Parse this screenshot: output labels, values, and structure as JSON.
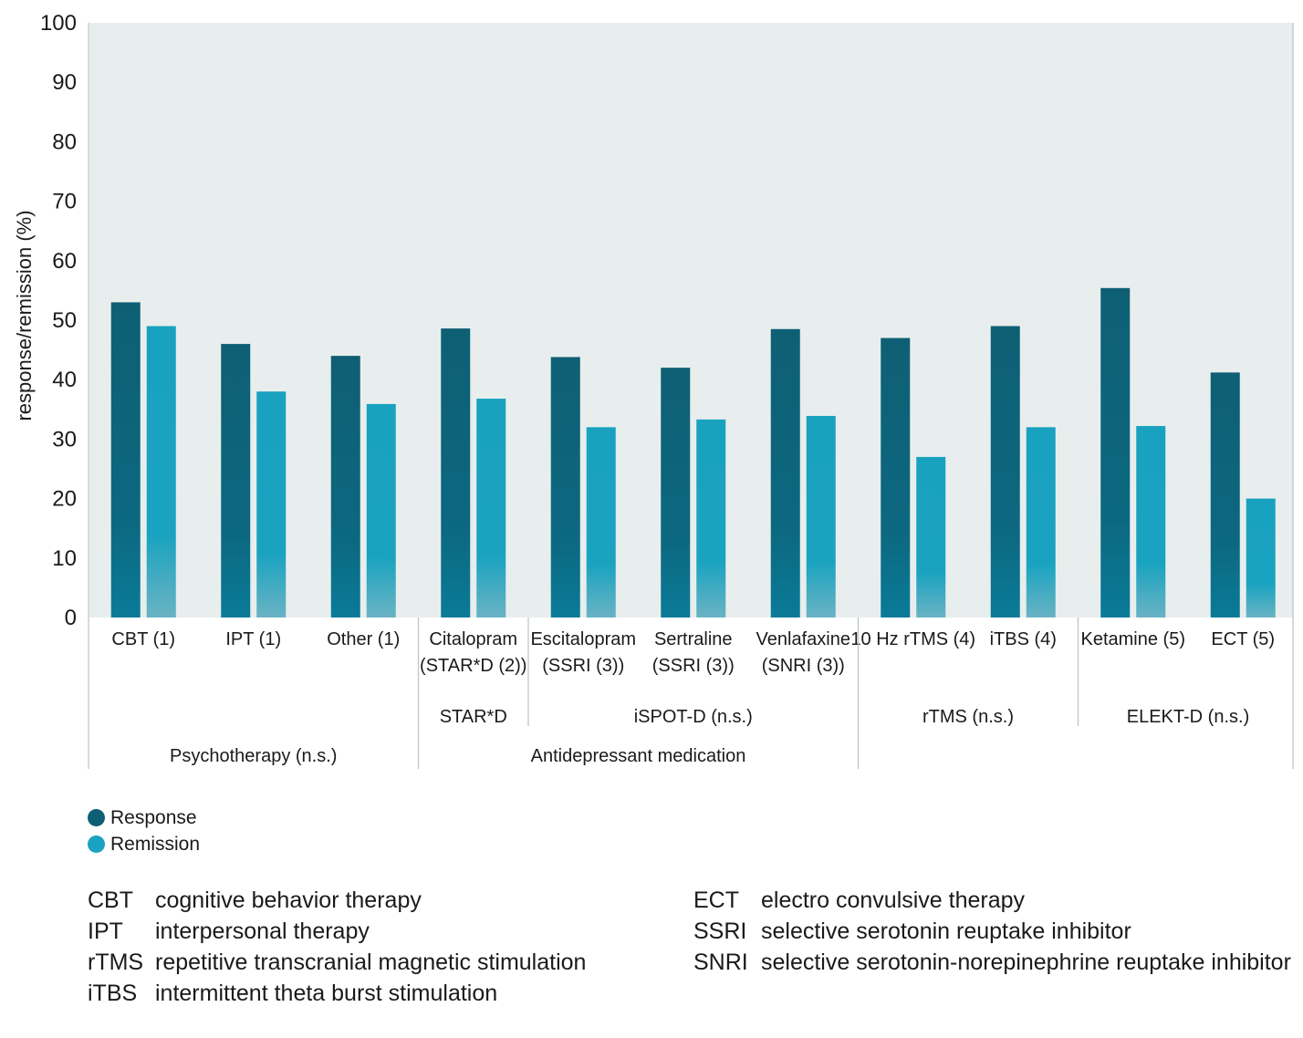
{
  "chart_data": {
    "type": "bar",
    "ylabel": "response/remission (%)",
    "ylim": [
      0,
      100
    ],
    "yticks": [
      0,
      10,
      20,
      30,
      40,
      50,
      60,
      70,
      80,
      90,
      100
    ],
    "grid": false,
    "categories": [
      [
        "CBT (1)"
      ],
      [
        "IPT (1)"
      ],
      [
        "Other (1)"
      ],
      [
        "Citalopram",
        "(STAR*D (2))"
      ],
      [
        "Escitalopram",
        "(SSRI (3))"
      ],
      [
        "Sertraline",
        "(SSRI (3))"
      ],
      [
        "Venlafaxine",
        "(SNRI (3))"
      ],
      [
        "10 Hz rTMS (4)"
      ],
      [
        "iTBS (4)"
      ],
      [
        "Ketamine (5)"
      ],
      [
        "ECT (5)"
      ]
    ],
    "series": [
      {
        "name": "Response",
        "color": "#0e5f74",
        "values": [
          53,
          46,
          44,
          48.6,
          43.8,
          42,
          48.5,
          47,
          49,
          55.4,
          41.2
        ]
      },
      {
        "name": "Remission",
        "color": "#1aa2c0",
        "values": [
          49,
          38,
          35.9,
          36.8,
          32,
          33.3,
          33.9,
          27,
          32,
          32.2,
          20
        ]
      }
    ],
    "subgroups": [
      {
        "label": "STAR*D",
        "span": [
          3,
          3
        ]
      },
      {
        "label": "iSPOT-D (n.s.)",
        "span": [
          4,
          6
        ]
      },
      {
        "label": "rTMS (n.s.)",
        "span": [
          7,
          8
        ]
      },
      {
        "label": "ELEKT-D (n.s.)",
        "span": [
          9,
          10
        ]
      }
    ],
    "groups": [
      {
        "label": "Psychotherapy (n.s.)",
        "span": [
          0,
          2
        ]
      },
      {
        "label": "Antidepressant medication",
        "span": [
          3,
          6
        ]
      },
      {
        "label": "",
        "span": [
          7,
          10
        ]
      }
    ],
    "legend_position": "bottom-left"
  },
  "abbreviations": {
    "left": [
      {
        "key": "CBT",
        "text": "cognitive behavior therapy"
      },
      {
        "key": "IPT",
        "text": "interpersonal therapy"
      },
      {
        "key": "rTMS",
        "text": "repetitive transcranial magnetic stimulation"
      },
      {
        "key": "iTBS",
        "text": "intermittent theta burst stimulation"
      }
    ],
    "right": [
      {
        "key": "ECT",
        "text": "electro convulsive therapy"
      },
      {
        "key": "SSRI",
        "text": "selective serotonin reuptake inhibitor"
      },
      {
        "key": "SNRI",
        "text": "selective serotonin-norepinephrine reuptake inhibitor"
      }
    ]
  }
}
